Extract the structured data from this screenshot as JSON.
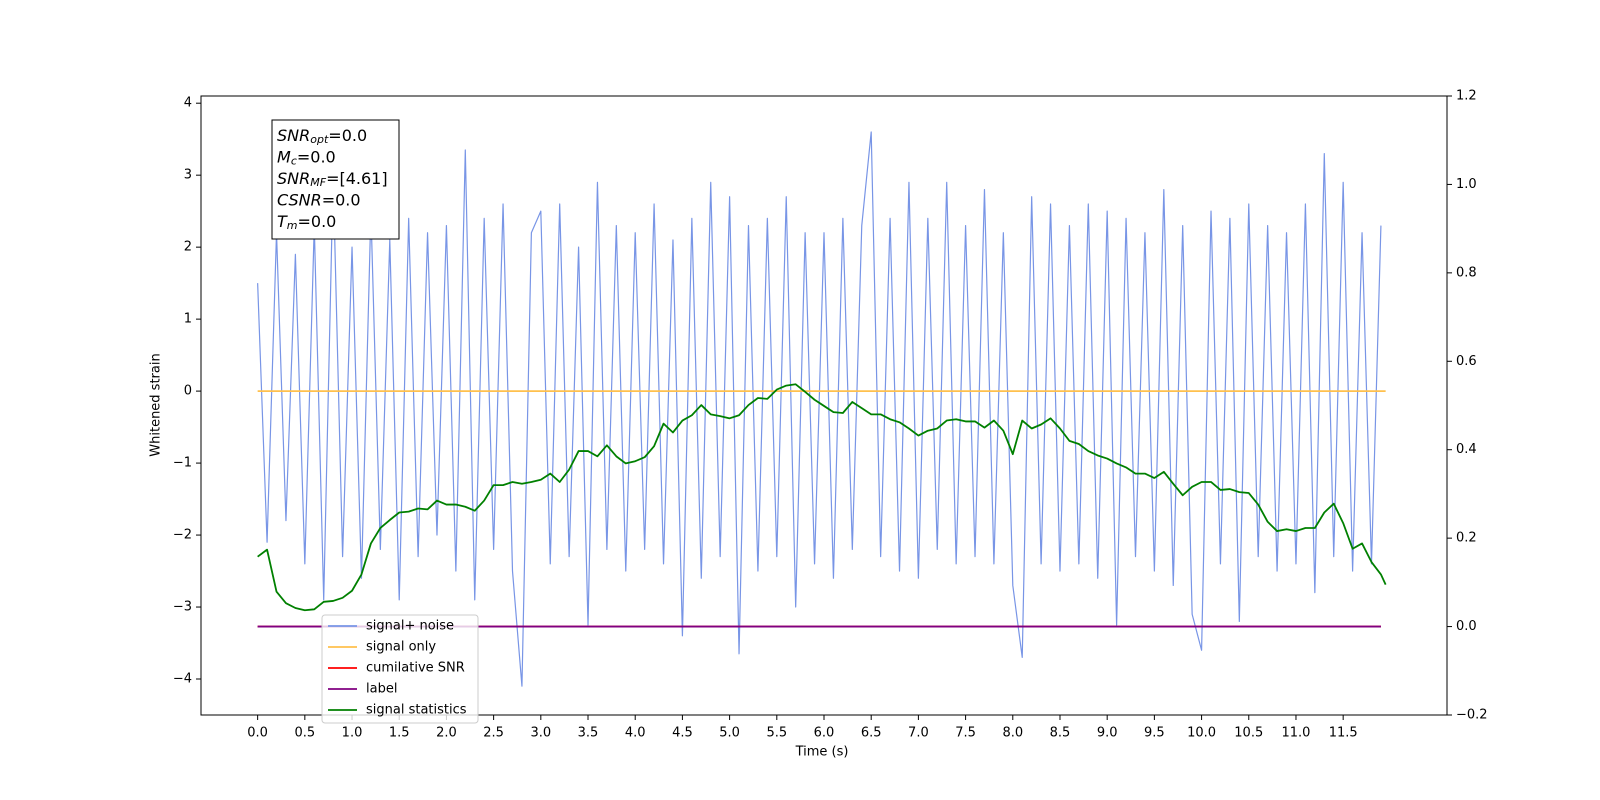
{
  "chart_data": {
    "type": "line",
    "xlabel": "Time (s)",
    "ylabel": "Whitened strain",
    "xlim": [
      -0.6,
      12.6
    ],
    "ylim": [
      -4.5,
      4.1
    ],
    "y2lim": [
      -0.2,
      1.2
    ],
    "xticks": [
      {
        "value": 0,
        "label": "0.0"
      },
      0.5,
      {
        "value": 1,
        "label": "1.0"
      },
      1.5,
      {
        "value": 2,
        "label": "2.0"
      },
      2.5,
      {
        "value": 3,
        "label": "3.0"
      },
      3.5,
      {
        "value": 4,
        "label": "4.0"
      },
      4.5,
      {
        "value": 5,
        "label": "5.0"
      },
      5.5,
      {
        "value": 6,
        "label": "6.0"
      },
      6.5,
      {
        "value": 7,
        "label": "7.0"
      },
      7.5,
      {
        "value": 8,
        "label": "8.0"
      },
      8.5,
      {
        "value": 9,
        "label": "9.0"
      },
      9.5,
      {
        "value": 10,
        "label": "10.0"
      },
      10.5,
      {
        "value": 11,
        "label": "11.0"
      },
      11.5
    ],
    "yticks": [
      {
        "value": -4,
        "label": "−4"
      },
      {
        "value": -3,
        "label": "−3"
      },
      {
        "value": -2,
        "label": "−2"
      },
      {
        "value": -1,
        "label": "−1"
      },
      0,
      1,
      2,
      3,
      4
    ],
    "y2ticks": [
      {
        "value": -0.2,
        "label": "−0.2"
      },
      {
        "value": 0,
        "label": "0.0"
      },
      0.2,
      0.4,
      0.6,
      0.8,
      {
        "value": 1,
        "label": "1.0"
      },
      1.2
    ],
    "grid": false,
    "legend": true,
    "annotation": [
      {
        "main": "SNR",
        "sub": "opt",
        "rest": "=0.0"
      },
      {
        "main": "M",
        "sub": "c",
        "rest": "=0.0"
      },
      {
        "main": "SNR",
        "sub": "MF",
        "rest": "=[4.61]"
      },
      {
        "main": "CSNR",
        "rest": "=0.0"
      },
      {
        "main": "T",
        "sub": "m",
        "rest": "=0.0"
      }
    ],
    "series": [
      {
        "name": "signal+ noise",
        "color": "#7895e6",
        "x": [
          0,
          0.1,
          0.2,
          0.3,
          0.4,
          0.5,
          0.6,
          0.7,
          0.8,
          0.9,
          1,
          1.1,
          1.2,
          1.3,
          1.4,
          1.5,
          1.6,
          1.7,
          1.8,
          1.9,
          2,
          2.1,
          2.2,
          2.3,
          2.4,
          2.5,
          2.6,
          2.7,
          2.8,
          2.9,
          3,
          3.1,
          3.2,
          3.3,
          3.4,
          3.5,
          3.6,
          3.7,
          3.8,
          3.9,
          4,
          4.1,
          4.2,
          4.3,
          4.4,
          4.5,
          4.6,
          4.7,
          4.8,
          4.9,
          5,
          5.1,
          5.2,
          5.3,
          5.4,
          5.5,
          5.6,
          5.7,
          5.8,
          5.9,
          6,
          6.1,
          6.2,
          6.3,
          6.4,
          6.5,
          6.6,
          6.7,
          6.8,
          6.9,
          7,
          7.1,
          7.2,
          7.3,
          7.4,
          7.5,
          7.6,
          7.7,
          7.8,
          7.9,
          8,
          8.1,
          8.2,
          8.3,
          8.4,
          8.5,
          8.6,
          8.7,
          8.8,
          8.9,
          9,
          9.1,
          9.2,
          9.3,
          9.4,
          9.5,
          9.6,
          9.7,
          9.8,
          9.9,
          10,
          10.1,
          10.2,
          10.3,
          10.4,
          10.5,
          10.6,
          10.7,
          10.8,
          10.9,
          11,
          11.1,
          11.2,
          11.3,
          11.4,
          11.5,
          11.6,
          11.7,
          11.8,
          11.9
        ],
        "values": [
          1.5,
          -2.1,
          2.2,
          -1.8,
          1.9,
          -2.4,
          2.3,
          -2.9,
          3.0,
          -2.3,
          2.0,
          -2.6,
          2.5,
          -2.2,
          2.1,
          -2.9,
          2.4,
          -2.3,
          2.2,
          -2.0,
          2.3,
          -2.5,
          3.35,
          -2.9,
          2.4,
          -2.2,
          2.6,
          -2.5,
          -4.1,
          2.2,
          2.5,
          -2.4,
          2.6,
          -2.3,
          2.0,
          -3.25,
          2.9,
          -2.2,
          2.3,
          -2.5,
          2.2,
          -2.2,
          2.6,
          -2.4,
          2.1,
          -3.4,
          2.4,
          -2.6,
          2.9,
          -2.3,
          2.7,
          -3.65,
          2.3,
          -2.5,
          2.4,
          -2.3,
          2.7,
          -3.0,
          2.2,
          -2.4,
          2.2,
          -2.6,
          2.4,
          -2.2,
          2.3,
          3.6,
          -2.3,
          2.4,
          -2.5,
          2.9,
          -2.6,
          2.4,
          -2.2,
          2.9,
          -2.4,
          2.3,
          -2.3,
          2.8,
          -2.4,
          2.2,
          -2.7,
          -3.7,
          2.7,
          -2.4,
          2.6,
          -2.5,
          2.3,
          -2.4,
          2.6,
          -2.6,
          2.5,
          -3.25,
          2.4,
          -2.3,
          2.2,
          -2.5,
          2.8,
          -2.7,
          2.3,
          -3.1,
          -3.6,
          2.5,
          -2.4,
          2.4,
          -3.2,
          2.6,
          -2.3,
          2.3,
          -2.5,
          2.2,
          -2.4,
          2.6,
          -2.8,
          3.3,
          -2.3,
          2.9,
          -2.5,
          2.2,
          -2.4,
          2.3
        ]
      },
      {
        "name": "signal only",
        "color": "#ffc04d",
        "x": [
          0,
          11.95
        ],
        "values": [
          0,
          0
        ]
      },
      {
        "name": "cumilative SNR",
        "color": "#ff0000",
        "axis": "y2",
        "x": [
          0,
          11.9
        ],
        "values": [
          0,
          0
        ]
      },
      {
        "name": "label",
        "color": "#800080",
        "axis": "y2",
        "x": [
          0,
          11.9
        ],
        "values": [
          0,
          0
        ]
      },
      {
        "name": "signal statistics",
        "color": "#008000",
        "axis": "y2",
        "x": [
          0,
          0.1,
          0.2,
          0.3,
          0.4,
          0.5,
          0.6,
          0.7,
          0.8,
          0.9,
          1,
          1.1,
          1.2,
          1.3,
          1.4,
          1.5,
          1.6,
          1.7,
          1.8,
          1.9,
          2,
          2.1,
          2.2,
          2.3,
          2.4,
          2.5,
          2.6,
          2.7,
          2.8,
          2.9,
          3,
          3.1,
          3.2,
          3.3,
          3.4,
          3.5,
          3.6,
          3.7,
          3.8,
          3.9,
          4,
          4.1,
          4.2,
          4.3,
          4.4,
          4.5,
          4.6,
          4.7,
          4.8,
          4.9,
          5,
          5.1,
          5.2,
          5.3,
          5.4,
          5.5,
          5.6,
          5.7,
          5.8,
          5.9,
          6,
          6.1,
          6.2,
          6.3,
          6.4,
          6.5,
          6.6,
          6.7,
          6.8,
          6.9,
          7,
          7.1,
          7.2,
          7.3,
          7.4,
          7.5,
          7.6,
          7.7,
          7.8,
          7.9,
          8,
          8.1,
          8.2,
          8.3,
          8.4,
          8.5,
          8.6,
          8.7,
          8.8,
          8.9,
          9,
          9.1,
          9.2,
          9.3,
          9.4,
          9.5,
          9.6,
          9.7,
          9.8,
          9.9,
          10,
          10.1,
          10.2,
          10.3,
          10.4,
          10.5,
          10.6,
          10.7,
          10.8,
          10.9,
          11,
          11.1,
          11.2,
          11.3,
          11.4,
          11.5,
          11.6,
          11.7,
          11.8,
          11.9,
          11.95
        ],
        "values": [
          0.158,
          0.174,
          0.079,
          0.053,
          0.042,
          0.037,
          0.039,
          0.056,
          0.058,
          0.065,
          0.081,
          0.118,
          0.188,
          0.223,
          0.241,
          0.258,
          0.26,
          0.267,
          0.265,
          0.285,
          0.276,
          0.276,
          0.271,
          0.262,
          0.285,
          0.32,
          0.32,
          0.327,
          0.323,
          0.327,
          0.332,
          0.346,
          0.327,
          0.355,
          0.397,
          0.397,
          0.385,
          0.41,
          0.385,
          0.369,
          0.374,
          0.383,
          0.408,
          0.459,
          0.439,
          0.466,
          0.478,
          0.501,
          0.48,
          0.476,
          0.471,
          0.478,
          0.501,
          0.517,
          0.515,
          0.536,
          0.545,
          0.548,
          0.531,
          0.513,
          0.499,
          0.485,
          0.483,
          0.508,
          0.494,
          0.48,
          0.48,
          0.469,
          0.462,
          0.448,
          0.432,
          0.443,
          0.448,
          0.466,
          0.469,
          0.464,
          0.464,
          0.45,
          0.466,
          0.443,
          0.39,
          0.466,
          0.448,
          0.457,
          0.471,
          0.448,
          0.42,
          0.413,
          0.397,
          0.387,
          0.38,
          0.369,
          0.36,
          0.346,
          0.346,
          0.336,
          0.35,
          0.323,
          0.297,
          0.316,
          0.327,
          0.327,
          0.309,
          0.311,
          0.304,
          0.302,
          0.276,
          0.237,
          0.216,
          0.22,
          0.216,
          0.223,
          0.223,
          0.258,
          0.278,
          0.234,
          0.176,
          0.188,
          0.146,
          0.118,
          0.095
        ]
      }
    ]
  }
}
